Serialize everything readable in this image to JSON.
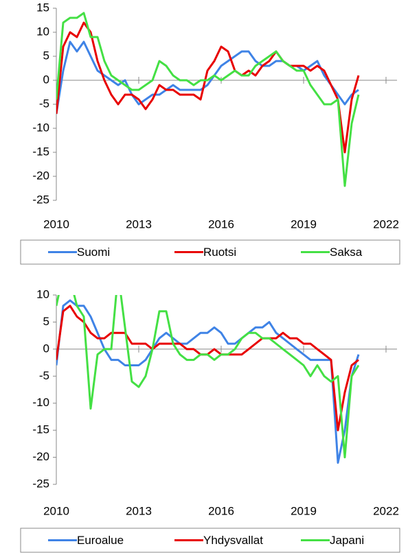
{
  "chart_data": [
    {
      "type": "line",
      "x": [
        2010,
        2010.25,
        2010.5,
        2010.75,
        2011,
        2011.25,
        2011.5,
        2011.75,
        2012,
        2012.25,
        2012.5,
        2012.75,
        2013,
        2013.25,
        2013.5,
        2013.75,
        2014,
        2014.25,
        2014.5,
        2014.75,
        2015,
        2015.25,
        2015.5,
        2015.75,
        2016,
        2016.25,
        2016.5,
        2016.75,
        2017,
        2017.25,
        2017.5,
        2017.75,
        2018,
        2018.25,
        2018.5,
        2018.75,
        2019,
        2019.25,
        2019.5,
        2019.75,
        2020,
        2020.25,
        2020.5,
        2020.75,
        2021
      ],
      "xlim": [
        2010,
        2022.4
      ],
      "xticks": [
        2010,
        2013,
        2016,
        2019,
        2022
      ],
      "ylim": [
        -25,
        15
      ],
      "yticks": [
        -25,
        -20,
        -15,
        -10,
        -5,
        0,
        5,
        10,
        15
      ],
      "series": [
        {
          "name": "Suomi",
          "color": "#3f83e6",
          "values": [
            -7,
            2,
            8,
            6,
            8,
            5,
            2,
            1,
            0,
            -1,
            0,
            -3,
            -5,
            -4,
            -3,
            -3,
            -2,
            -1,
            -2,
            -2,
            -2,
            -2,
            -1,
            1,
            3,
            4,
            5,
            6,
            6,
            4,
            3,
            3,
            4,
            4,
            3,
            3,
            2,
            3,
            4,
            1,
            -1,
            -3,
            -5,
            -3,
            -2
          ]
        },
        {
          "name": "Ruotsi",
          "color": "#e80000",
          "values": [
            -7,
            7,
            10,
            9,
            12,
            10,
            4,
            0,
            -3,
            -5,
            -3,
            -3,
            -4,
            -6,
            -4,
            -1,
            -2,
            -2,
            -3,
            -3,
            -3,
            -4,
            2,
            4,
            7,
            6,
            2,
            1,
            2,
            1,
            3,
            4,
            6,
            4,
            3,
            3,
            3,
            2,
            3,
            2,
            -1,
            -4,
            -15,
            -4,
            1
          ]
        },
        {
          "name": "Saksa",
          "color": "#44e044",
          "values": [
            -4,
            12,
            13,
            13,
            14,
            9,
            9,
            4,
            1,
            0,
            -1,
            -2,
            -2,
            -1,
            0,
            4,
            3,
            1,
            0,
            0,
            -1,
            0,
            0,
            1,
            0,
            1,
            2,
            1,
            1,
            3,
            4,
            5,
            6,
            4,
            3,
            2,
            2,
            -1,
            -3,
            -5,
            -5,
            -4,
            -22,
            -9,
            -3
          ]
        }
      ]
    },
    {
      "type": "line",
      "x": [
        2010,
        2010.25,
        2010.5,
        2010.75,
        2011,
        2011.25,
        2011.5,
        2011.75,
        2012,
        2012.25,
        2012.5,
        2012.75,
        2013,
        2013.25,
        2013.5,
        2013.75,
        2014,
        2014.25,
        2014.5,
        2014.75,
        2015,
        2015.25,
        2015.5,
        2015.75,
        2016,
        2016.25,
        2016.5,
        2016.75,
        2017,
        2017.25,
        2017.5,
        2017.75,
        2018,
        2018.25,
        2018.5,
        2018.75,
        2019,
        2019.25,
        2019.5,
        2019.75,
        2020,
        2020.25,
        2020.5,
        2020.75,
        2021
      ],
      "xlim": [
        2010,
        2022.4
      ],
      "xticks": [
        2010,
        2013,
        2016,
        2019,
        2022
      ],
      "ylim": [
        -25,
        10
      ],
      "yticks": [
        -25,
        -20,
        -15,
        -10,
        -5,
        0,
        5,
        10
      ],
      "series": [
        {
          "name": "Euroalue",
          "color": "#3f83e6",
          "values": [
            -3,
            8,
            9,
            8,
            8,
            6,
            3,
            0,
            -2,
            -2,
            -3,
            -3,
            -3,
            -2,
            0,
            2,
            3,
            2,
            1,
            1,
            2,
            3,
            3,
            4,
            3,
            1,
            1,
            2,
            3,
            4,
            4,
            5,
            3,
            2,
            1,
            0,
            -1,
            -2,
            -2,
            -2,
            -2,
            -21,
            -15,
            -5,
            -1
          ]
        },
        {
          "name": "Yhdysvallat",
          "color": "#e80000",
          "values": [
            -2,
            7,
            8,
            6,
            5,
            3,
            2,
            2,
            3,
            3,
            3,
            1,
            1,
            1,
            0,
            1,
            1,
            1,
            1,
            0,
            0,
            -1,
            -1,
            0,
            -1,
            -1,
            -1,
            -1,
            0,
            1,
            2,
            2,
            2,
            3,
            2,
            2,
            1,
            1,
            0,
            -1,
            -2,
            -15,
            -8,
            -3,
            -2
          ]
        },
        {
          "name": "Japani",
          "color": "#44e044",
          "values": [
            8,
            14,
            13,
            8,
            6,
            -11,
            -1,
            0,
            0,
            14,
            4,
            -6,
            -7,
            -5,
            0,
            7,
            7,
            1,
            -1,
            -2,
            -2,
            -1,
            -1,
            -2,
            -1,
            -1,
            0,
            2,
            3,
            3,
            2,
            2,
            1,
            0,
            -1,
            -2,
            -3,
            -5,
            -3,
            -5,
            -6,
            -5,
            -20,
            -5,
            -3
          ]
        }
      ]
    }
  ]
}
